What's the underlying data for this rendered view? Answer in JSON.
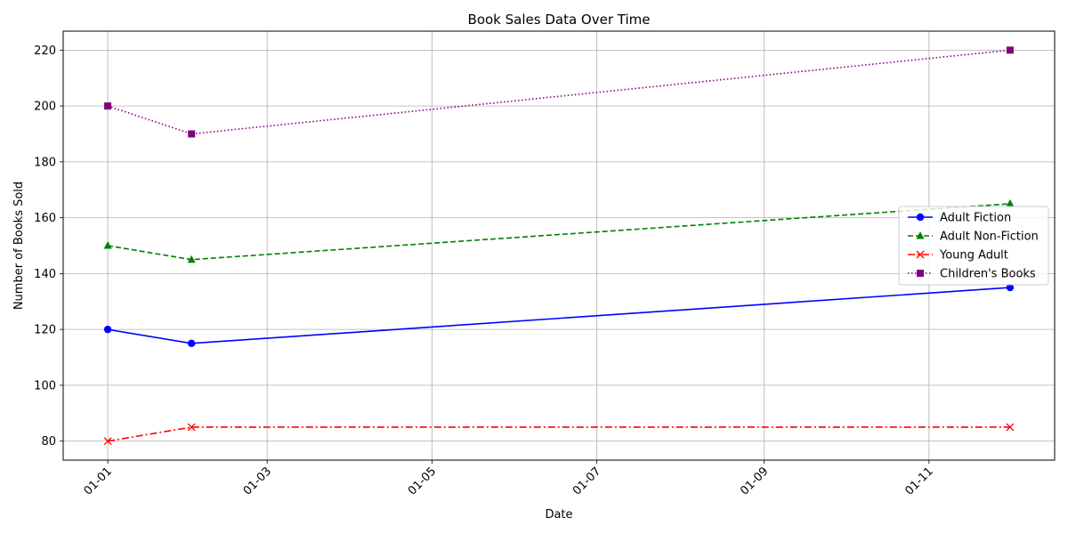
{
  "chart_data": {
    "type": "line",
    "title": "Book Sales Data Over Time",
    "xlabel": "Date",
    "ylabel": "Number of Books Sold",
    "x": [
      "2023-01-01",
      "2023-02-01",
      "2023-12-01"
    ],
    "x_ticks": [
      "01-01",
      "01-03",
      "01-05",
      "01-07",
      "01-09",
      "01-11"
    ],
    "x_tick_dates": [
      "2023-01-01",
      "2023-03-01",
      "2023-05-01",
      "2023-07-01",
      "2023-09-01",
      "2023-11-01"
    ],
    "y_ticks": [
      80,
      100,
      120,
      140,
      160,
      180,
      200,
      220
    ],
    "ylim": [
      73.2,
      226.8
    ],
    "grid": true,
    "legend_position": "center-right",
    "series": [
      {
        "name": "Adult Fiction",
        "values": [
          120,
          115,
          135
        ],
        "color": "#0000ff",
        "line_style": "solid",
        "marker": "circle"
      },
      {
        "name": "Adult Non-Fiction",
        "values": [
          150,
          145,
          165
        ],
        "color": "#008000",
        "line_style": "dashed",
        "marker": "triangle"
      },
      {
        "name": "Young Adult",
        "values": [
          80,
          85,
          85
        ],
        "color": "#ff0000",
        "line_style": "dashdot",
        "marker": "x"
      },
      {
        "name": "Children's Books",
        "values": [
          200,
          190,
          220
        ],
        "color": "#800080",
        "line_style": "dotted",
        "marker": "square"
      }
    ]
  }
}
